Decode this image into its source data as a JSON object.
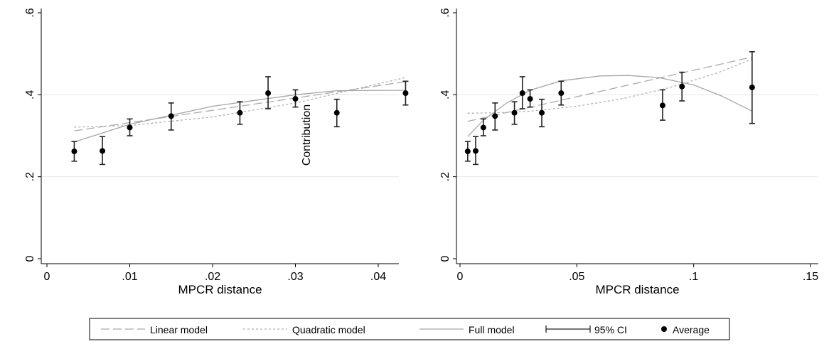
{
  "chart_data": [
    {
      "type": "scatter",
      "xlabel": "MPCR distance",
      "ylabel_annotation": "Contribution",
      "xlim": [
        0,
        0.044
      ],
      "ylim": [
        0,
        0.6
      ],
      "x_ticks": [
        0,
        0.01,
        0.02,
        0.03,
        0.04
      ],
      "x_tick_labels": [
        "0",
        ".01",
        ".02",
        ".03",
        ".04"
      ],
      "y_ticks": [
        0,
        0.2,
        0.4,
        0.6
      ],
      "y_tick_labels": [
        "0",
        ".2",
        ".4",
        ".6"
      ],
      "grid": true,
      "averages": [
        {
          "x": 0.0033,
          "y": 0.262,
          "ci": [
            0.238,
            0.286
          ]
        },
        {
          "x": 0.0067,
          "y": 0.263,
          "ci": [
            0.23,
            0.298
          ]
        },
        {
          "x": 0.01,
          "y": 0.32,
          "ci": [
            0.3,
            0.341
          ]
        },
        {
          "x": 0.015,
          "y": 0.348,
          "ci": [
            0.314,
            0.38
          ]
        },
        {
          "x": 0.0233,
          "y": 0.356,
          "ci": [
            0.328,
            0.383
          ]
        },
        {
          "x": 0.0267,
          "y": 0.404,
          "ci": [
            0.366,
            0.444
          ]
        },
        {
          "x": 0.03,
          "y": 0.39,
          "ci": [
            0.37,
            0.412
          ]
        },
        {
          "x": 0.035,
          "y": 0.356,
          "ci": [
            0.322,
            0.389
          ]
        },
        {
          "x": 0.0433,
          "y": 0.404,
          "ci": [
            0.375,
            0.433
          ]
        }
      ],
      "fits": {
        "linear": {
          "x": [
            0.0033,
            0.0433
          ],
          "y": [
            0.312,
            0.432
          ]
        },
        "quadratic": {
          "x": [
            0.0033,
            0.01,
            0.02,
            0.03,
            0.0433
          ],
          "y": [
            0.321,
            0.325,
            0.346,
            0.38,
            0.442
          ]
        },
        "full": {
          "x": [
            0.0033,
            0.01,
            0.02,
            0.03,
            0.035,
            0.0433
          ],
          "y": [
            0.285,
            0.328,
            0.372,
            0.4,
            0.41,
            0.411
          ]
        }
      }
    },
    {
      "type": "scatter",
      "xlabel": "MPCR distance",
      "xlim": [
        0,
        0.15
      ],
      "ylim": [
        0,
        0.6
      ],
      "x_ticks": [
        0,
        0.05,
        0.1,
        0.15
      ],
      "x_tick_labels": [
        "0",
        ".05",
        ".1",
        ".15"
      ],
      "y_ticks": [
        0,
        0.2,
        0.4,
        0.6
      ],
      "y_tick_labels": [
        "0",
        ".2",
        ".4",
        ".6"
      ],
      "grid": true,
      "averages": [
        {
          "x": 0.0033,
          "y": 0.262,
          "ci": [
            0.238,
            0.286
          ]
        },
        {
          "x": 0.0067,
          "y": 0.263,
          "ci": [
            0.23,
            0.298
          ]
        },
        {
          "x": 0.01,
          "y": 0.32,
          "ci": [
            0.3,
            0.341
          ]
        },
        {
          "x": 0.015,
          "y": 0.348,
          "ci": [
            0.314,
            0.38
          ]
        },
        {
          "x": 0.0233,
          "y": 0.356,
          "ci": [
            0.328,
            0.383
          ]
        },
        {
          "x": 0.0267,
          "y": 0.404,
          "ci": [
            0.366,
            0.444
          ]
        },
        {
          "x": 0.03,
          "y": 0.39,
          "ci": [
            0.37,
            0.412
          ]
        },
        {
          "x": 0.035,
          "y": 0.356,
          "ci": [
            0.322,
            0.389
          ]
        },
        {
          "x": 0.0433,
          "y": 0.404,
          "ci": [
            0.375,
            0.433
          ]
        },
        {
          "x": 0.0867,
          "y": 0.374,
          "ci": [
            0.338,
            0.412
          ]
        },
        {
          "x": 0.095,
          "y": 0.42,
          "ci": [
            0.385,
            0.455
          ]
        },
        {
          "x": 0.125,
          "y": 0.418,
          "ci": [
            0.33,
            0.505
          ]
        }
      ],
      "fits": {
        "linear": {
          "x": [
            0.0033,
            0.125
          ],
          "y": [
            0.335,
            0.492
          ]
        },
        "quadratic": {
          "x": [
            0.0033,
            0.015,
            0.03,
            0.05,
            0.07,
            0.09,
            0.11,
            0.125
          ],
          "y": [
            0.355,
            0.356,
            0.36,
            0.372,
            0.391,
            0.418,
            0.453,
            0.487
          ]
        },
        "full": {
          "x": [
            0.0033,
            0.01,
            0.02,
            0.03,
            0.0433,
            0.06,
            0.072,
            0.085,
            0.1,
            0.112,
            0.125
          ],
          "y": [
            0.298,
            0.338,
            0.38,
            0.411,
            0.434,
            0.446,
            0.447,
            0.442,
            0.424,
            0.397,
            0.36
          ]
        }
      }
    }
  ],
  "legend": {
    "placement": "bottom",
    "items": [
      {
        "label": "Linear model",
        "style": "longdash"
      },
      {
        "label": "Quadratic model",
        "style": "shortdash"
      },
      {
        "label": "Full model",
        "style": "solid"
      },
      {
        "label": "95% CI",
        "style": "capped-bar"
      },
      {
        "label": "Average",
        "style": "dot"
      }
    ]
  },
  "colors": {
    "point": "#000000",
    "ci": "#222222",
    "linear": "#aaaaaa",
    "quadratic": "#b0b0b0",
    "full": "#a6a6a6",
    "grid": "#e6e6e6",
    "axis": "#000000"
  }
}
